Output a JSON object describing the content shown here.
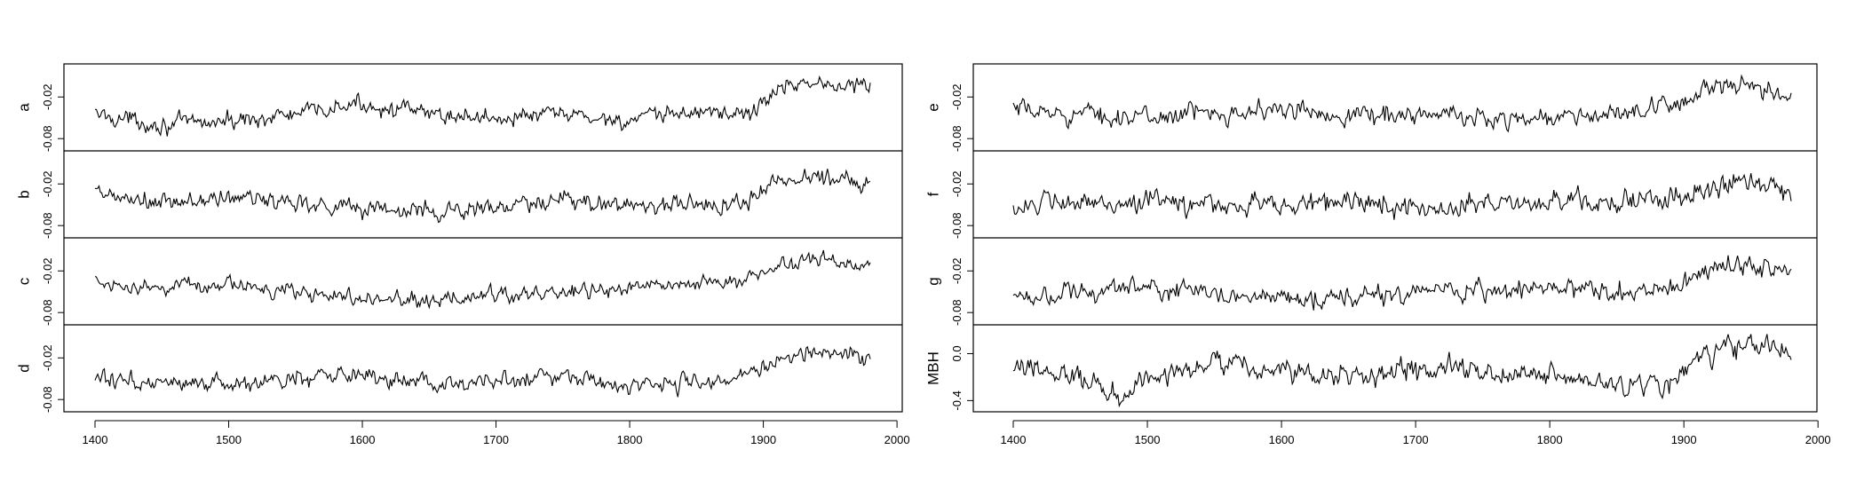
{
  "chart_data": [
    {
      "type": "line",
      "title": "",
      "xlabel": "",
      "ylabel": "",
      "xlim": [
        1400,
        1980
      ],
      "x_ticks": [
        1400,
        1500,
        1600,
        1700,
        1800,
        1900,
        2000
      ],
      "x_tick_labels": [
        "1400",
        "1500",
        "1600",
        "1700",
        "1800",
        "1900",
        "2000"
      ],
      "panels": [
        {
          "label": "a",
          "ylim": [
            -0.09,
            0.02
          ],
          "y_ticks": [
            -0.08,
            -0.02
          ],
          "y_tick_labels": [
            "-0.08",
            "-0.02"
          ],
          "years": [
            1400,
            1450,
            1500,
            1550,
            1600,
            1650,
            1700,
            1750,
            1800,
            1850,
            1890,
            1910,
            1930,
            1950,
            1980
          ],
          "values": [
            -0.045,
            -0.06,
            -0.055,
            -0.045,
            -0.03,
            -0.045,
            -0.05,
            -0.045,
            -0.055,
            -0.04,
            -0.045,
            -0.01,
            0.005,
            -0.005,
            -0.002
          ],
          "noise": 0.007
        },
        {
          "label": "b",
          "ylim": [
            -0.09,
            0.02
          ],
          "y_ticks": [
            -0.08,
            -0.02
          ],
          "y_tick_labels": [
            "-0.08",
            "-0.02"
          ],
          "years": [
            1400,
            1450,
            1500,
            1550,
            1600,
            1650,
            1700,
            1750,
            1800,
            1850,
            1890,
            1910,
            1930,
            1950,
            1980
          ],
          "values": [
            -0.035,
            -0.05,
            -0.04,
            -0.045,
            -0.055,
            -0.06,
            -0.055,
            -0.045,
            -0.05,
            -0.05,
            -0.045,
            -0.015,
            -0.01,
            -0.01,
            -0.015
          ],
          "noise": 0.008
        },
        {
          "label": "c",
          "ylim": [
            -0.09,
            0.02
          ],
          "y_ticks": [
            -0.08,
            -0.02
          ],
          "y_tick_labels": [
            "-0.08",
            "-0.02"
          ],
          "years": [
            1400,
            1450,
            1500,
            1550,
            1600,
            1650,
            1700,
            1750,
            1800,
            1850,
            1880,
            1910,
            1930,
            1950,
            1980
          ],
          "values": [
            -0.035,
            -0.045,
            -0.04,
            -0.05,
            -0.06,
            -0.065,
            -0.055,
            -0.05,
            -0.045,
            -0.04,
            -0.035,
            -0.015,
            -0.005,
            -0.005,
            -0.01
          ],
          "noise": 0.006
        },
        {
          "label": "d",
          "ylim": [
            -0.09,
            0.02
          ],
          "y_ticks": [
            -0.08,
            -0.02
          ],
          "y_tick_labels": [
            "-0.08",
            "-0.02"
          ],
          "years": [
            1400,
            1450,
            1500,
            1550,
            1600,
            1650,
            1700,
            1750,
            1800,
            1850,
            1890,
            1910,
            1930,
            1950,
            1980
          ],
          "values": [
            -0.05,
            -0.055,
            -0.06,
            -0.05,
            -0.045,
            -0.055,
            -0.055,
            -0.05,
            -0.06,
            -0.055,
            -0.045,
            -0.025,
            -0.01,
            -0.01,
            -0.02
          ],
          "noise": 0.007
        }
      ]
    },
    {
      "type": "line",
      "title": "",
      "xlabel": "",
      "ylabel": "",
      "xlim": [
        1400,
        1980
      ],
      "x_ticks": [
        1400,
        1500,
        1600,
        1700,
        1800,
        1900,
        2000
      ],
      "x_tick_labels": [
        "1400",
        "1500",
        "1600",
        "1700",
        "1800",
        "1900",
        "2000"
      ],
      "panels": [
        {
          "label": "e",
          "ylim": [
            -0.09,
            0.02
          ],
          "y_ticks": [
            -0.08,
            -0.02
          ],
          "y_tick_labels": [
            "-0.08",
            "-0.02"
          ],
          "years": [
            1400,
            1450,
            1500,
            1550,
            1600,
            1650,
            1700,
            1750,
            1800,
            1850,
            1880,
            1910,
            1930,
            1950,
            1980
          ],
          "values": [
            -0.04,
            -0.045,
            -0.05,
            -0.04,
            -0.04,
            -0.045,
            -0.045,
            -0.05,
            -0.05,
            -0.045,
            -0.04,
            -0.015,
            -0.005,
            -0.01,
            -0.02
          ],
          "noise": 0.008
        },
        {
          "label": "f",
          "ylim": [
            -0.09,
            0.02
          ],
          "y_ticks": [
            -0.08,
            -0.02
          ],
          "y_tick_labels": [
            "-0.08",
            "-0.02"
          ],
          "years": [
            1400,
            1450,
            1500,
            1550,
            1600,
            1650,
            1700,
            1750,
            1800,
            1850,
            1890,
            1910,
            1930,
            1950,
            1980
          ],
          "values": [
            -0.05,
            -0.05,
            -0.045,
            -0.05,
            -0.05,
            -0.045,
            -0.055,
            -0.05,
            -0.045,
            -0.045,
            -0.045,
            -0.03,
            -0.02,
            -0.015,
            -0.025
          ],
          "noise": 0.009
        },
        {
          "label": "g",
          "ylim": [
            -0.09,
            0.02
          ],
          "y_ticks": [
            -0.08,
            -0.02
          ],
          "y_tick_labels": [
            "-0.08",
            "-0.02"
          ],
          "years": [
            1400,
            1450,
            1500,
            1550,
            1600,
            1650,
            1700,
            1750,
            1800,
            1850,
            1890,
            1910,
            1930,
            1950,
            1980
          ],
          "values": [
            -0.055,
            -0.05,
            -0.045,
            -0.055,
            -0.055,
            -0.06,
            -0.055,
            -0.05,
            -0.045,
            -0.05,
            -0.045,
            -0.025,
            -0.01,
            -0.015,
            -0.02
          ],
          "noise": 0.008
        },
        {
          "label": "MBH",
          "ylim": [
            -0.45,
            0.2
          ],
          "y_ticks": [
            -0.4,
            0.0
          ],
          "y_tick_labels": [
            "-0.4",
            "0.0"
          ],
          "years": [
            1400,
            1450,
            1480,
            1500,
            1550,
            1600,
            1650,
            1700,
            1750,
            1800,
            1850,
            1890,
            1910,
            1930,
            1950,
            1980
          ],
          "values": [
            -0.15,
            -0.2,
            -0.35,
            -0.2,
            -0.1,
            -0.15,
            -0.2,
            -0.15,
            -0.15,
            -0.2,
            -0.25,
            -0.25,
            -0.05,
            0.05,
            0.05,
            0.0
          ],
          "noise": 0.055
        }
      ]
    }
  ]
}
